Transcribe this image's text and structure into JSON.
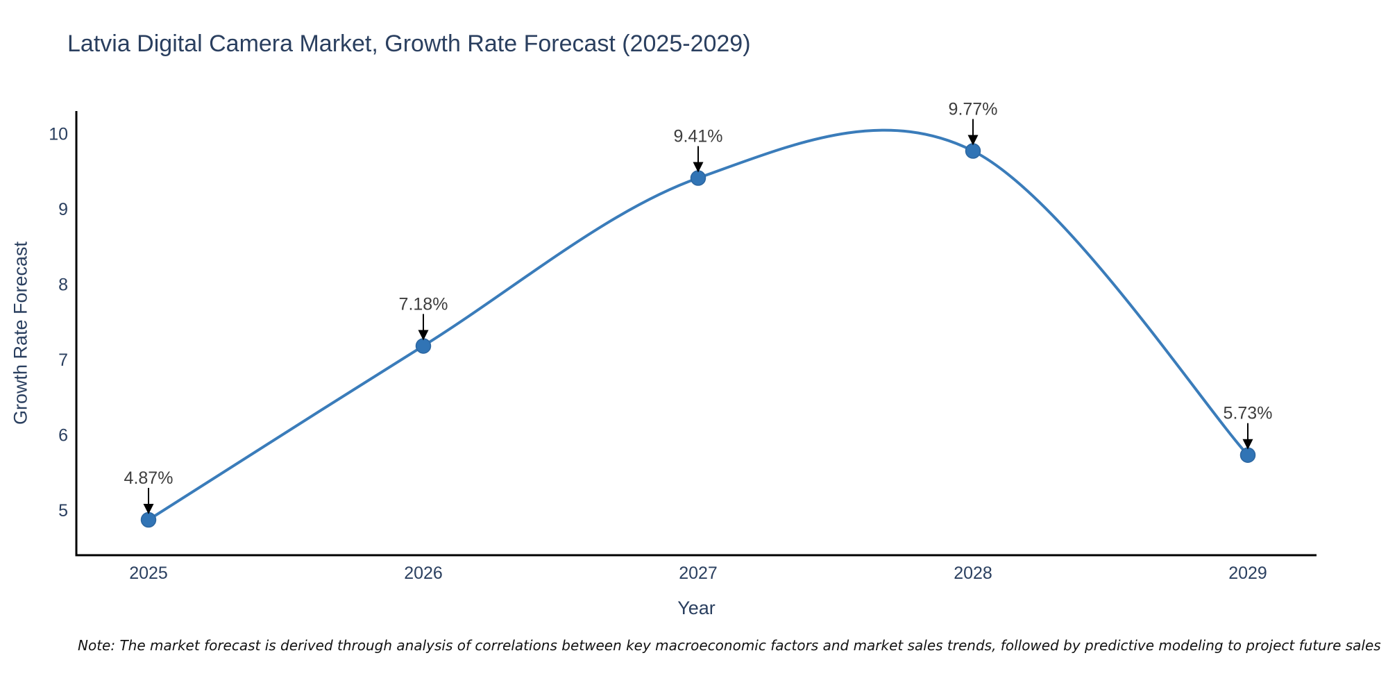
{
  "note": "Note: The market forecast is derived through analysis of correlations between key macroeconomic factors and market sales trends, followed by predictive modeling to project future sales",
  "chart_data": {
    "type": "line",
    "title": "Latvia Digital Camera Market, Growth Rate Forecast (2025-2029)",
    "x": [
      2025,
      2026,
      2027,
      2028,
      2029
    ],
    "series": [
      {
        "name": "Growth Rate Forecast",
        "values": [
          4.87,
          7.18,
          9.41,
          9.77,
          5.73
        ]
      }
    ],
    "point_labels": [
      "4.87%",
      "7.18%",
      "9.41%",
      "9.77%",
      "5.73%"
    ],
    "xlabel": "Year",
    "ylabel": "Growth Rate Forecast",
    "yticks": [
      5,
      6,
      7,
      8,
      9,
      10
    ],
    "ylim": [
      4.4,
      10.3
    ],
    "curve": "spline",
    "grid": false,
    "legend": false,
    "annotations_style": "label-with-down-arrow",
    "colors": {
      "line": "#3a7cba",
      "marker": "#3174b5",
      "marker_edge": "#2c66a0",
      "axis": "#000000",
      "tick_text": "#2a3f5f",
      "annotation_text": "#3d3d3d",
      "arrow": "#000000"
    }
  }
}
